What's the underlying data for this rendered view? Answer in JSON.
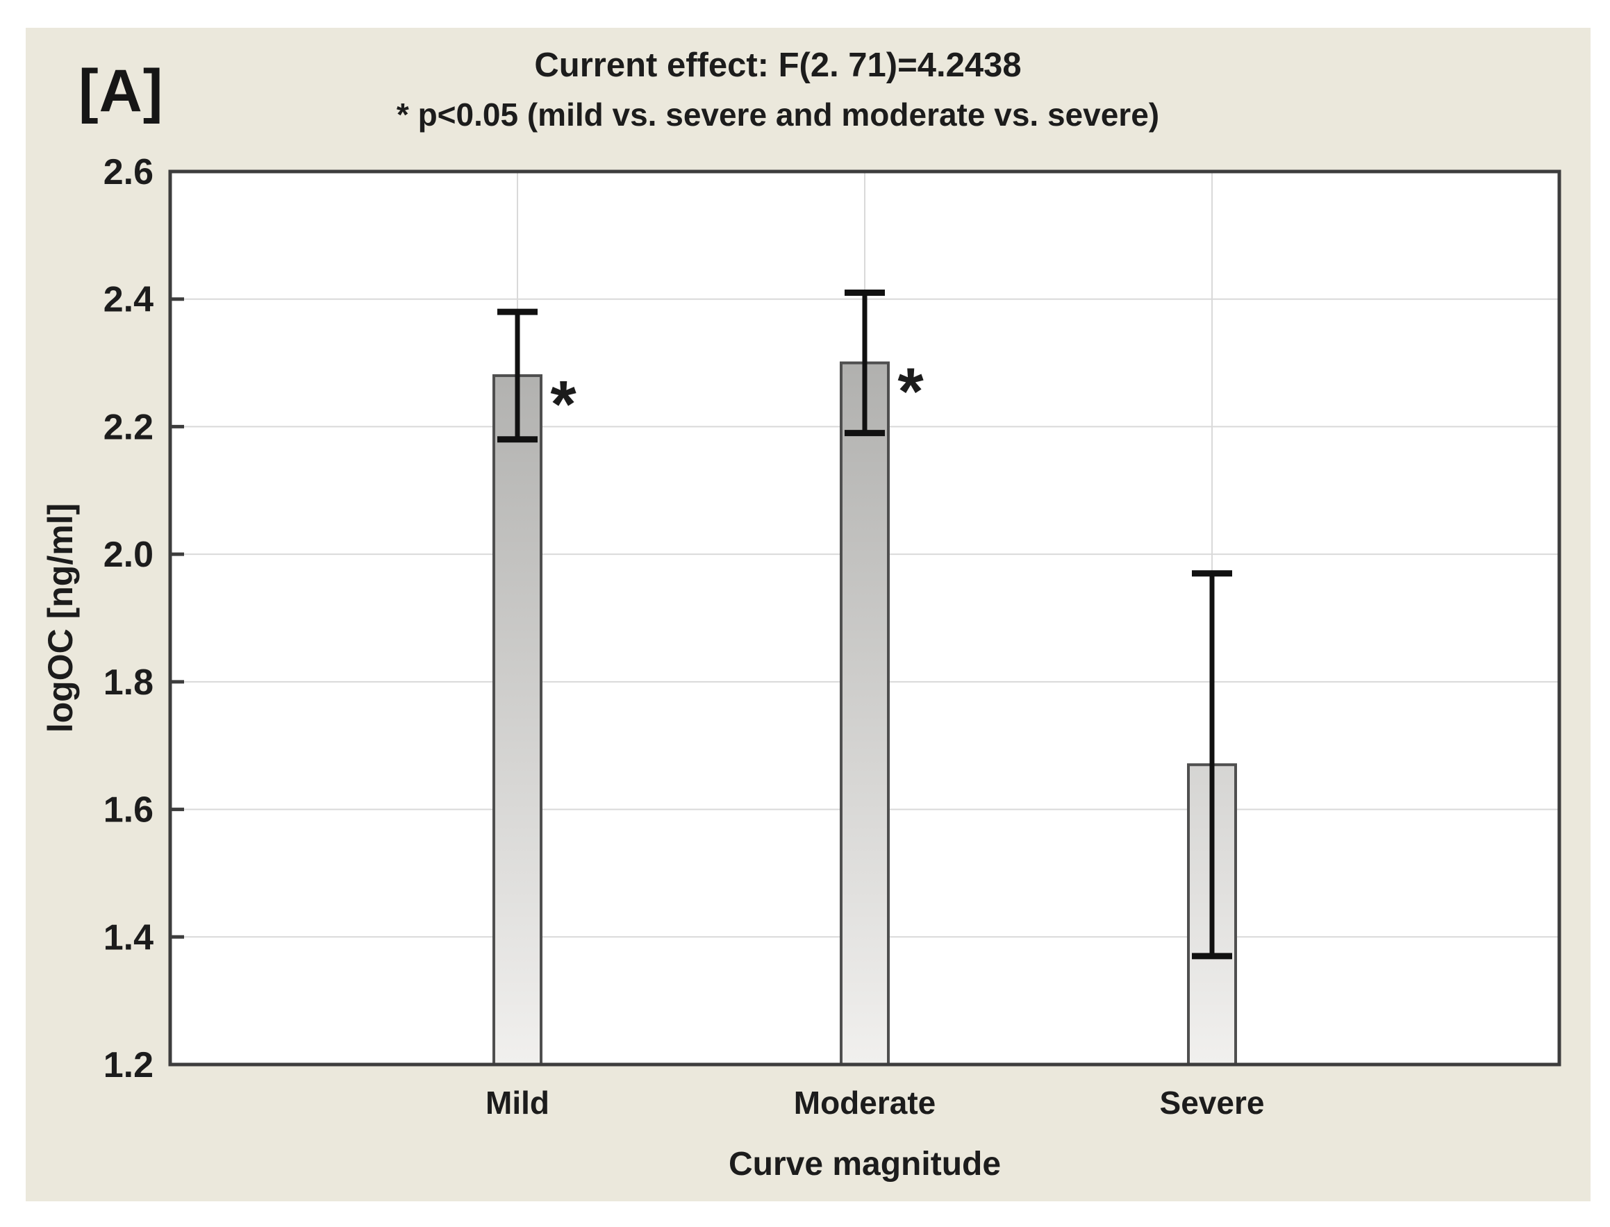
{
  "figure_label": "[A]",
  "title_line1": "Current effect: F(2. 71)=4.2438",
  "title_line2": "* p<0.05 (mild vs. severe and moderate vs. severe)",
  "chart_data": {
    "type": "bar",
    "title": "Current effect: F(2. 71)=4.2438",
    "subtitle": "* p<0.05 (mild vs. severe and moderate vs. severe)",
    "categories": [
      "Mild",
      "Moderate",
      "Severe"
    ],
    "values": [
      2.28,
      2.3,
      1.67
    ],
    "error_upper": [
      2.38,
      2.41,
      1.97
    ],
    "error_lower": [
      2.18,
      2.19,
      1.37
    ],
    "significant": [
      true,
      true,
      false
    ],
    "significance_marker": "*",
    "xlabel": "Curve magnitude",
    "ylabel": "logOC [ng/ml]",
    "ylim": [
      1.2,
      2.6
    ],
    "yticks": [
      2.6,
      2.4,
      2.2,
      2.0,
      1.8,
      1.6,
      1.4,
      1.2
    ],
    "grid": {
      "horizontal": true,
      "vertical_at_category_centers": true
    },
    "legend": "none",
    "colors": {
      "panel_bg": "#ebe8dc",
      "plot_bg": "#ffffff",
      "gridline": "#d9d9d9",
      "frame": "#3d3d3d",
      "bar_gradient_top": "#9f9f9d",
      "bar_gradient_bottom": "#f1f0ee",
      "bar_border": "#4f4f4f",
      "error_bar": "#111111",
      "text": "#1c1c1c"
    }
  }
}
